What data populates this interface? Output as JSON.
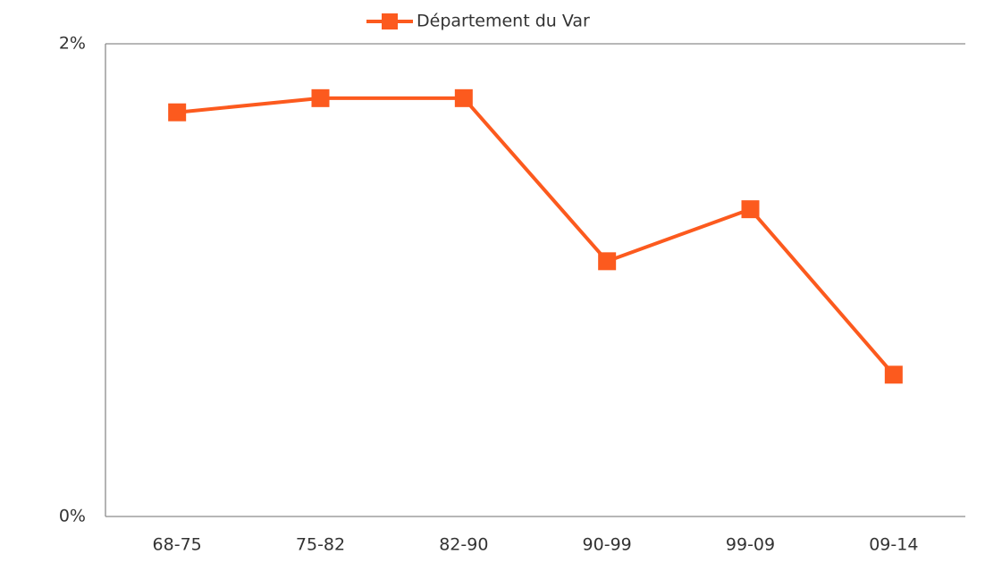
{
  "chart_data": {
    "type": "line",
    "categories": [
      "68-75",
      "75-82",
      "82-90",
      "90-99",
      "99-09",
      "09-14"
    ],
    "series": [
      {
        "name": "Département du Var",
        "color": "#fc5a1e",
        "values": [
          1.71,
          1.77,
          1.77,
          1.08,
          1.3,
          0.6
        ]
      }
    ],
    "ylim": [
      0,
      2
    ],
    "yticks": [
      {
        "value": 0,
        "label": "0%"
      },
      {
        "value": 2,
        "label": "2%"
      }
    ],
    "grid": true,
    "legend": "top"
  }
}
